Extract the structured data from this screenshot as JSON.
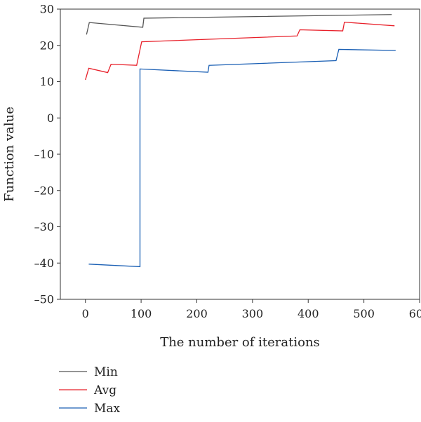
{
  "chart_data": {
    "type": "line",
    "xlabel": "The number of iterations",
    "ylabel": "Function value",
    "xlim": [
      -45,
      600
    ],
    "ylim": [
      -50,
      30
    ],
    "xticks": [
      0,
      100,
      200,
      300,
      400,
      500,
      600
    ],
    "yticks": [
      -50,
      -40,
      -30,
      -20,
      -10,
      0,
      10,
      20,
      30
    ],
    "grid": false,
    "legend_position": "bottom-left",
    "series": [
      {
        "name": "Min",
        "color": "#555555",
        "points": [
          [
            2,
            23
          ],
          [
            7,
            26.3
          ],
          [
            103,
            25
          ],
          [
            105,
            27.5
          ],
          [
            550,
            28.5
          ]
        ]
      },
      {
        "name": "Avg",
        "color": "#e8202a",
        "points": [
          [
            0,
            10.5
          ],
          [
            6,
            13.7
          ],
          [
            40,
            12.5
          ],
          [
            46,
            14.8
          ],
          [
            92,
            14.5
          ],
          [
            101,
            21
          ],
          [
            380,
            22.6
          ],
          [
            385,
            24.3
          ],
          [
            462,
            24
          ],
          [
            465,
            26.4
          ],
          [
            555,
            25.4
          ]
        ]
      },
      {
        "name": "Max",
        "color": "#1a5fb4",
        "points": [
          [
            6,
            -40.3
          ],
          [
            98,
            -41
          ],
          [
            98,
            13.5
          ],
          [
            220,
            12.6
          ],
          [
            222,
            14.5
          ],
          [
            450,
            15.8
          ],
          [
            455,
            18.9
          ],
          [
            557,
            18.6
          ]
        ]
      }
    ]
  }
}
